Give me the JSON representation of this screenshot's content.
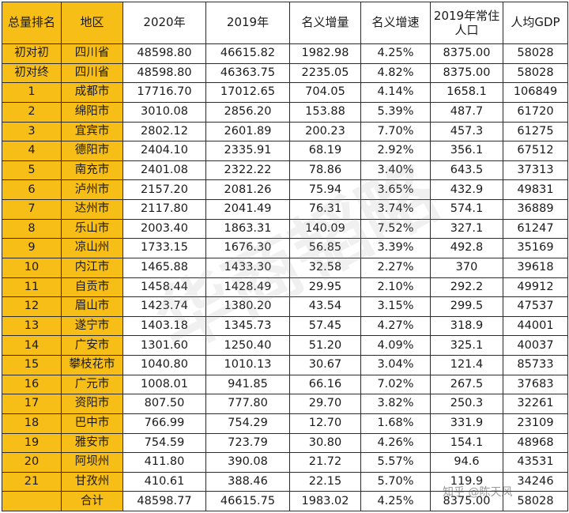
{
  "table": {
    "headers": [
      "总量排名",
      "地区",
      "2020年",
      "2019年",
      "名义增量",
      "名义增速",
      "2019年常住人口",
      "人均GDP"
    ],
    "rows": [
      [
        "初对初",
        "四川省",
        "48598.80",
        "46615.82",
        "1982.98",
        "4.25%",
        "8375.00",
        "58028"
      ],
      [
        "初对终",
        "四川省",
        "48598.80",
        "46363.75",
        "2235.05",
        "4.82%",
        "8375.00",
        "58028"
      ],
      [
        "1",
        "成都市",
        "17716.70",
        "17012.65",
        "704.05",
        "4.14%",
        "1658.1",
        "106849"
      ],
      [
        "2",
        "绵阳市",
        "3010.08",
        "2856.20",
        "153.88",
        "5.39%",
        "487.7",
        "61720"
      ],
      [
        "3",
        "宜宾市",
        "2802.12",
        "2601.89",
        "200.23",
        "7.70%",
        "457.3",
        "61275"
      ],
      [
        "4",
        "德阳市",
        "2404.10",
        "2335.91",
        "68.19",
        "2.92%",
        "356.1",
        "67512"
      ],
      [
        "5",
        "南充市",
        "2401.08",
        "2322.22",
        "78.86",
        "3.40%",
        "643.5",
        "37313"
      ],
      [
        "6",
        "泸州市",
        "2157.20",
        "2081.26",
        "75.94",
        "3.65%",
        "432.9",
        "49831"
      ],
      [
        "7",
        "达州市",
        "2117.80",
        "2041.49",
        "76.31",
        "3.74%",
        "574.1",
        "36889"
      ],
      [
        "8",
        "乐山市",
        "2003.40",
        "1863.31",
        "140.09",
        "7.52%",
        "327.1",
        "61247"
      ],
      [
        "9",
        "凉山州",
        "1733.15",
        "1676.30",
        "56.85",
        "3.39%",
        "492.8",
        "35169"
      ],
      [
        "10",
        "内江市",
        "1465.88",
        "1433.30",
        "32.58",
        "2.27%",
        "370",
        "39618"
      ],
      [
        "11",
        "自贡市",
        "1458.44",
        "1428.49",
        "29.95",
        "2.10%",
        "292.2",
        "49912"
      ],
      [
        "12",
        "眉山市",
        "1423.74",
        "1380.20",
        "43.54",
        "3.15%",
        "299.5",
        "47537"
      ],
      [
        "13",
        "遂宁市",
        "1403.18",
        "1345.73",
        "57.45",
        "4.27%",
        "318.9",
        "44001"
      ],
      [
        "14",
        "广安市",
        "1301.60",
        "1250.40",
        "51.20",
        "4.09%",
        "325.1",
        "40037"
      ],
      [
        "15",
        "攀枝花市",
        "1040.80",
        "1010.13",
        "30.67",
        "3.04%",
        "121.4",
        "85733"
      ],
      [
        "16",
        "广元市",
        "1008.01",
        "941.85",
        "66.16",
        "7.02%",
        "267.5",
        "37683"
      ],
      [
        "17",
        "资阳市",
        "807.50",
        "777.80",
        "29.70",
        "3.82%",
        "250.3",
        "32261"
      ],
      [
        "18",
        "巴中市",
        "766.99",
        "754.29",
        "12.70",
        "1.68%",
        "331.9",
        "23109"
      ],
      [
        "19",
        "雅安市",
        "754.59",
        "723.79",
        "30.80",
        "4.26%",
        "154.1",
        "48968"
      ],
      [
        "20",
        "阿坝州",
        "411.80",
        "390.08",
        "21.72",
        "5.57%",
        "94.6",
        "43531"
      ],
      [
        "21",
        "甘孜州",
        "410.61",
        "388.46",
        "22.15",
        "5.70%",
        "119.9",
        "34246"
      ]
    ],
    "total": [
      "",
      "合计",
      "48598.77",
      "46615.75",
      "1983.02",
      "4.25%",
      "8375.00",
      "58028"
    ]
  },
  "watermark": {
    "corner": "知乎 @陈天风",
    "diagonal": "华商韬略"
  },
  "colors": {
    "highlight": "#f7be17",
    "border": "#2b2b2b",
    "background": "#ffffff"
  }
}
